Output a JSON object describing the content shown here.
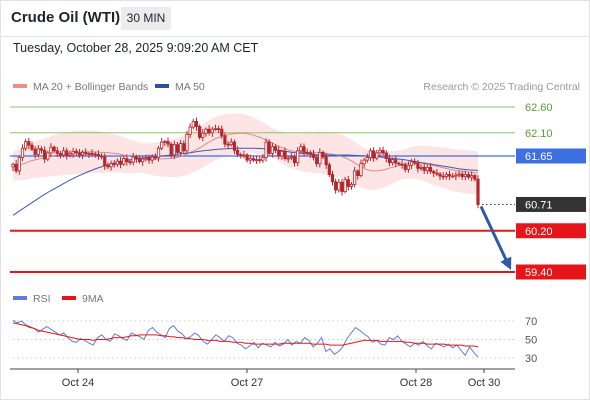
{
  "header": {
    "title": "Crude Oil (WTI)",
    "timeframe": "30 MIN",
    "datetime": "Tuesday, October 28, 2025 9:09:20 AM CET"
  },
  "legend": {
    "ma20_bb": "MA 20 + Bollinger Bands",
    "ma50": "MA 50",
    "rsi": "RSI",
    "rsi_ma": "9MA"
  },
  "copyright": "Research © 2025 Trading Central",
  "colors": {
    "candle": "#b5272d",
    "bollinger_fill": "#fde0e1",
    "ma20": "#e28a87",
    "ma50": "#3a5bb5",
    "resistance": "#8cc56a",
    "pivot": "#3d6fe0",
    "support": "#e5161a",
    "last_price": "#333333",
    "arrow": "#2c5aa5",
    "rsi": "#5b7fdc",
    "rsi_ma": "#e5161a"
  },
  "chart_data": [
    {
      "type": "candlestick",
      "title": "Crude Oil (WTI)",
      "timeframe": "30 MIN",
      "x_ticks": [
        "Oct 24",
        "Oct 27",
        "Oct 28",
        "Oct 30"
      ],
      "y_range": [
        59.2,
        62.8
      ],
      "levels": [
        {
          "value": 62.6,
          "label": "62.60",
          "kind": "resistance"
        },
        {
          "value": 62.1,
          "label": "62.10",
          "kind": "resistance"
        },
        {
          "value": 61.65,
          "label": "61.65",
          "kind": "pivot"
        },
        {
          "value": 60.71,
          "label": "60.71",
          "kind": "last"
        },
        {
          "value": 60.2,
          "label": "60.20",
          "kind": "support"
        },
        {
          "value": 59.4,
          "label": "59.40",
          "kind": "support"
        }
      ],
      "close_values": [
        61.49,
        61.36,
        61.62,
        61.8,
        61.93,
        61.86,
        61.78,
        61.68,
        61.79,
        61.76,
        61.59,
        61.71,
        61.82,
        61.75,
        61.7,
        61.67,
        61.75,
        61.66,
        61.69,
        61.74,
        61.71,
        61.67,
        61.72,
        61.69,
        61.7,
        61.69,
        61.68,
        61.65,
        61.63,
        61.46,
        61.44,
        61.5,
        61.49,
        61.55,
        61.49,
        61.6,
        61.54,
        61.53,
        61.63,
        61.59,
        61.54,
        61.59,
        61.61,
        61.57,
        61.63,
        61.62,
        61.8,
        61.92,
        61.93,
        61.88,
        61.67,
        61.87,
        61.72,
        61.89,
        61.75,
        62.07,
        62.21,
        62.32,
        62.22,
        62.01,
        62.09,
        62.17,
        62.1,
        62.17,
        62.18,
        62.17,
        62.04,
        61.88,
        61.87,
        61.92,
        61.76,
        61.68,
        61.67,
        61.67,
        61.57,
        61.6,
        61.57,
        61.58,
        61.57,
        61.62,
        61.92,
        61.7,
        61.83,
        61.76,
        61.65,
        61.74,
        61.6,
        61.61,
        61.63,
        61.52,
        61.75,
        61.83,
        61.72,
        61.71,
        61.69,
        61.62,
        61.5,
        61.72,
        61.63,
        61.48,
        61.29,
        61.15,
        60.99,
        61.14,
        60.96,
        61.19,
        61.06,
        61.1,
        61.36,
        61.27,
        61.5,
        61.57,
        61.62,
        61.75,
        61.61,
        61.71,
        61.76,
        61.71,
        61.6,
        61.52,
        61.58,
        61.51,
        61.49,
        61.48,
        61.39,
        61.47,
        61.54,
        61.51,
        61.41,
        61.43,
        61.37,
        61.43,
        61.35,
        61.32,
        61.3,
        61.26,
        61.25,
        61.29,
        61.26,
        61.26,
        61.28,
        61.3,
        61.25,
        61.29,
        61.24,
        61.27,
        61.2,
        60.71
      ],
      "ma20_values": [
        61.45,
        61.47,
        61.49,
        61.52,
        61.56,
        61.58,
        61.6,
        61.62,
        61.64,
        61.66,
        61.67,
        61.69,
        61.7,
        61.71,
        61.72,
        61.73,
        61.73,
        61.73,
        61.73,
        61.72,
        61.72,
        61.71,
        61.7,
        61.69,
        61.67,
        61.65,
        61.63,
        61.62,
        61.61,
        61.6,
        61.59,
        61.59,
        61.59,
        61.6,
        61.6,
        61.61,
        61.63,
        61.66,
        61.7,
        61.74,
        61.78,
        61.83,
        61.89,
        61.94,
        61.99,
        62.02,
        62.05,
        62.07,
        62.08,
        62.09,
        62.09,
        62.08,
        62.06,
        62.03,
        62.0,
        61.96,
        61.92,
        61.87,
        61.83,
        61.79,
        61.76,
        61.74,
        61.73,
        61.72,
        61.72,
        61.72,
        61.72,
        61.71,
        61.7,
        61.69,
        61.67,
        61.65,
        61.62,
        61.58,
        61.53,
        61.47,
        61.42,
        61.38,
        61.36,
        61.36,
        61.37,
        61.39,
        61.42,
        61.44,
        61.47,
        61.49,
        61.51,
        61.52,
        61.52,
        61.51,
        61.49,
        61.47,
        61.45,
        61.43,
        61.41,
        61.39,
        61.37,
        61.36,
        61.35,
        61.34,
        61.33,
        61.32
      ],
      "ma50_values": [
        60.5,
        60.62,
        60.74,
        60.86,
        60.97,
        61.07,
        61.17,
        61.26,
        61.34,
        61.41,
        61.47,
        61.52,
        61.56,
        61.59,
        61.61,
        61.63,
        61.65,
        61.67,
        61.69,
        61.71,
        61.74,
        61.76,
        61.78,
        61.79,
        61.8,
        61.8,
        61.8,
        61.79,
        61.77,
        61.75,
        61.72,
        61.7,
        61.68,
        61.67,
        61.67,
        61.67,
        61.67,
        61.66,
        61.65,
        61.64,
        61.62,
        61.6,
        61.58,
        61.55,
        61.52,
        61.49,
        61.46,
        61.43,
        61.4,
        61.38,
        61.37
      ],
      "rsi_y_ticks": [
        30,
        50,
        70
      ],
      "rsi_values": [
        71,
        68,
        70,
        66,
        64,
        62,
        58,
        61,
        64,
        61,
        58,
        55,
        57,
        52,
        48,
        47,
        51,
        49,
        46,
        44,
        52,
        55,
        50,
        48,
        56,
        54,
        51,
        49,
        57,
        55,
        53,
        50,
        60,
        63,
        58,
        55,
        52,
        62,
        65,
        59,
        56,
        51,
        53,
        57,
        54,
        48,
        45,
        50,
        55,
        52,
        48,
        54,
        52,
        46,
        44,
        40,
        43,
        47,
        41,
        46,
        44,
        42,
        47,
        43,
        45,
        50,
        44,
        48,
        46,
        52,
        49,
        42,
        46,
        52,
        37,
        40,
        34,
        37,
        42,
        51,
        57,
        63,
        60,
        56,
        53,
        47,
        49,
        45,
        44,
        52,
        50,
        54,
        48,
        45,
        42,
        46,
        44,
        48,
        43,
        40,
        46,
        44,
        42,
        45,
        41,
        44,
        38,
        33,
        42,
        36,
        31
      ],
      "rsi_ma_values": [
        68,
        67,
        66,
        65,
        63,
        62,
        60,
        59,
        58,
        57,
        56,
        55,
        54,
        53,
        52,
        51,
        50,
        50,
        50,
        49,
        50,
        50,
        50,
        51,
        52,
        52,
        52,
        53,
        54,
        54,
        55,
        55,
        55,
        55,
        55,
        54,
        54,
        53,
        53,
        52,
        52,
        51,
        51,
        50,
        50,
        50,
        49,
        49,
        49,
        48,
        48,
        48,
        47,
        47,
        47,
        46,
        46,
        45,
        45,
        45,
        45,
        45,
        45,
        45,
        46,
        46,
        46,
        46,
        46,
        46,
        46,
        45,
        45,
        45,
        45,
        44,
        44,
        44,
        44,
        45,
        46,
        47,
        48,
        49,
        49,
        49,
        49,
        48,
        48,
        48,
        48,
        48,
        48,
        47,
        47,
        46,
        46,
        46,
        45,
        45,
        45,
        45,
        45,
        44,
        44,
        44,
        44,
        43,
        43,
        43,
        42
      ]
    }
  ]
}
